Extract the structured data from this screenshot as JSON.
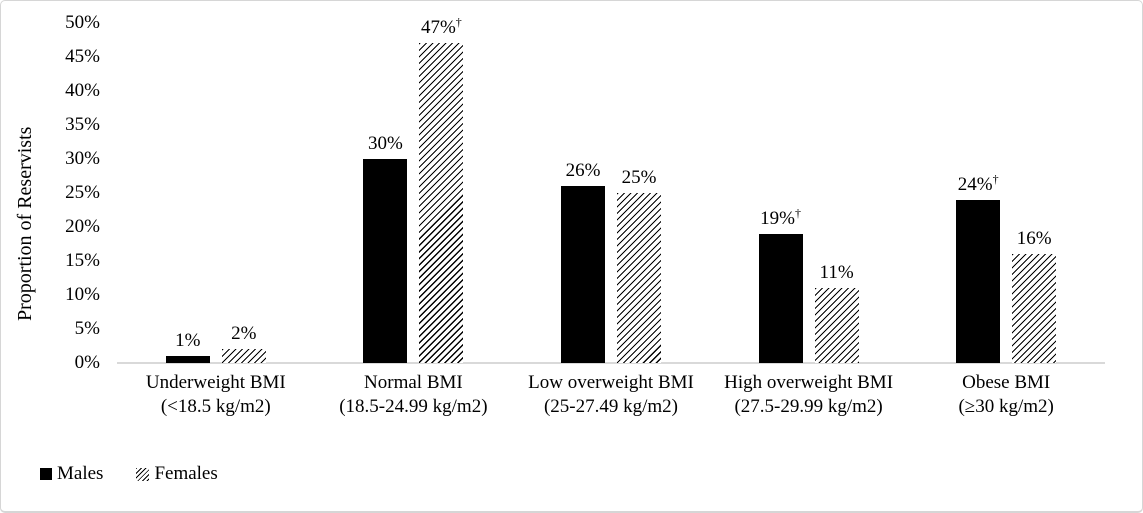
{
  "chart_data": {
    "type": "bar",
    "title": "",
    "ylabel": "Proportion of Reservists",
    "xlabel": "",
    "grid": false,
    "background": "#ffffff",
    "axis_line_color": "#d9d9d9",
    "legend_position": "bottom-left",
    "ylim": [
      0,
      50
    ],
    "y_axis": {
      "min": 0,
      "max": 50,
      "step": 5,
      "suffix": "%",
      "tick_labels": [
        "0%",
        "5%",
        "10%",
        "15%",
        "20%",
        "25%",
        "30%",
        "35%",
        "40%",
        "45%",
        "50%"
      ]
    },
    "categories": [
      {
        "name": "Underweight BMI",
        "range": "(<18.5 kg/m2)"
      },
      {
        "name": "Normal BMI",
        "range": "(18.5-24.99 kg/m2)"
      },
      {
        "name": "Low overweight BMI",
        "range": "(25-27.49 kg/m2)"
      },
      {
        "name": "High overweight BMI",
        "range": "(27.5-29.99 kg/m2)"
      },
      {
        "name": "Obese BMI",
        "range": "(≥30 kg/m2)"
      }
    ],
    "series": [
      {
        "name": "Males",
        "fill": "solid",
        "color": "#000000",
        "values": [
          1,
          30,
          26,
          19,
          24
        ],
        "value_labels": [
          "1%",
          "30%",
          "26%",
          "19%†",
          "24%†"
        ]
      },
      {
        "name": "Females",
        "fill": "diagonal-hatch",
        "color": "#000000",
        "values": [
          2,
          47,
          25,
          11,
          16
        ],
        "value_labels": [
          "2%",
          "47%†",
          "25%",
          "11%",
          "16%"
        ]
      }
    ]
  },
  "legend": {
    "items": [
      {
        "label": "Males",
        "swatch": "solid-black-square"
      },
      {
        "label": "Females",
        "swatch": "diagonal-hatch-square"
      }
    ]
  }
}
